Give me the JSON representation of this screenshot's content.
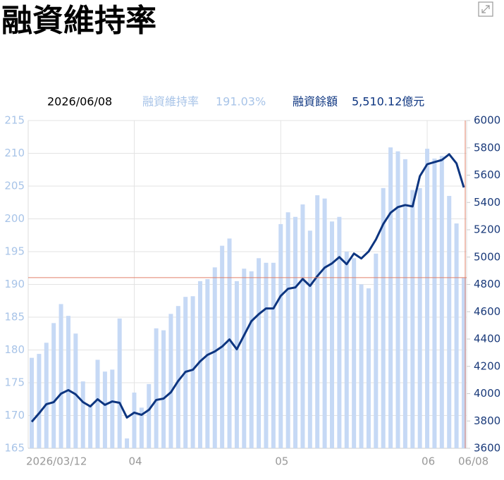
{
  "chart_data": {
    "type": "bar-line",
    "title": "融資維持率",
    "readout": {
      "date": "2026/06/08",
      "items": [
        "191.03%",
        "5,510.12億元"
      ]
    },
    "categories": [
      "2026/03/12",
      null,
      null,
      null,
      null,
      null,
      null,
      null,
      null,
      null,
      null,
      null,
      null,
      null,
      "04",
      null,
      null,
      null,
      null,
      null,
      null,
      null,
      null,
      null,
      null,
      null,
      null,
      null,
      null,
      null,
      null,
      null,
      null,
      null,
      "05",
      null,
      null,
      null,
      null,
      null,
      null,
      null,
      null,
      null,
      null,
      null,
      null,
      null,
      null,
      null,
      null,
      null,
      null,
      null,
      "06",
      null,
      null,
      null,
      null,
      "06/08"
    ],
    "series": [
      {
        "name": "融資維持率",
        "type": "bar",
        "color": "#c6d9f5",
        "axis": "y",
        "values": [
          178.8,
          179.4,
          181.1,
          184.1,
          187.0,
          185.2,
          182.5,
          175.2,
          171.6,
          178.5,
          176.7,
          177.0,
          184.8,
          166.5,
          173.5,
          171.2,
          174.8,
          183.3,
          183.0,
          185.5,
          186.7,
          188.1,
          188.2,
          190.5,
          190.8,
          192.6,
          195.9,
          197.0,
          190.5,
          192.4,
          192.0,
          194.0,
          193.3,
          193.3,
          199.2,
          201.0,
          200.3,
          202.2,
          198.2,
          203.6,
          203.1,
          199.6,
          200.3,
          195.0,
          194.0,
          190.0,
          189.4,
          194.7,
          204.7,
          210.9,
          210.3,
          209.1,
          204.4,
          204.7,
          210.7,
          209.2,
          209.6,
          203.5,
          199.3,
          191.03
        ]
      },
      {
        "name": "融資餘額",
        "type": "line",
        "color": "#0d3580",
        "axis": "y2",
        "values": [
          3794,
          3856,
          3923,
          3938,
          4000,
          4026,
          3995,
          3938,
          3907,
          3959,
          3918,
          3943,
          3933,
          3825,
          3861,
          3845,
          3881,
          3954,
          3964,
          4010,
          4093,
          4160,
          4175,
          4237,
          4284,
          4309,
          4345,
          4397,
          4325,
          4428,
          4531,
          4582,
          4624,
          4624,
          4716,
          4768,
          4778,
          4840,
          4789,
          4861,
          4923,
          4954,
          5000,
          4948,
          5026,
          4990,
          5041,
          5129,
          5242,
          5325,
          5366,
          5381,
          5371,
          5593,
          5680,
          5696,
          5711,
          5753,
          5686,
          5510.12
        ]
      }
    ],
    "ylim": [
      165,
      215
    ],
    "yticks": [
      165,
      170,
      175,
      180,
      185,
      190,
      195,
      200,
      205,
      210,
      215
    ],
    "y2lim": [
      3600,
      6000
    ],
    "y2ticks": [
      3600,
      3800,
      4000,
      4200,
      4400,
      4600,
      4800,
      5000,
      5200,
      5400,
      5600,
      5800,
      6000
    ],
    "grid": true
  }
}
